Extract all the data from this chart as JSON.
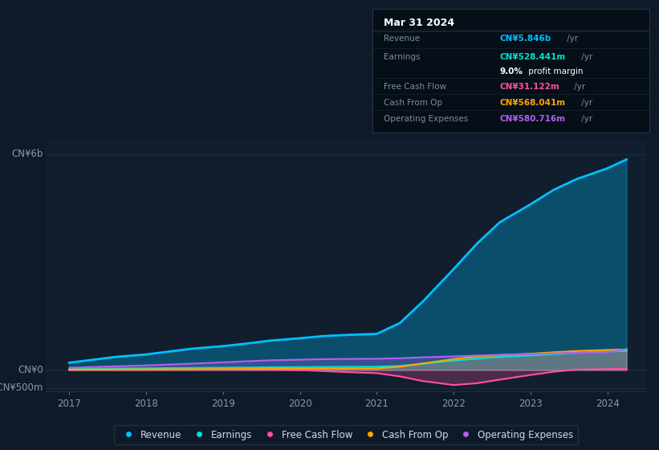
{
  "background_color": "#0e1a27",
  "chart_bg_color": "#111e2d",
  "tooltip_bg": "#060e18",
  "title": "Mar 31 2024",
  "tooltip": {
    "Revenue": {
      "label": "CN¥5.846b",
      "suffix": " /yr"
    },
    "Earnings": {
      "label": "CN¥528.441m",
      "suffix": " /yr"
    },
    "profit_margin_bold": "9.0%",
    "profit_margin_text": " profit margin",
    "Free Cash Flow": {
      "label": "CN¥31.122m",
      "suffix": " /yr"
    },
    "Cash From Op": {
      "label": "CN¥568.041m",
      "suffix": " /yr"
    },
    "Operating Expenses": {
      "label": "CN¥580.716m",
      "suffix": " /yr"
    }
  },
  "ylabel_top": "CN¥6b",
  "ylabel_zero": "CN¥0",
  "ylabel_neg": "-CN¥500m",
  "years": [
    2017.0,
    2017.3,
    2017.6,
    2018.0,
    2018.3,
    2018.6,
    2019.0,
    2019.3,
    2019.6,
    2020.0,
    2020.3,
    2020.6,
    2021.0,
    2021.3,
    2021.6,
    2022.0,
    2022.3,
    2022.6,
    2023.0,
    2023.3,
    2023.6,
    2024.0,
    2024.25
  ],
  "revenue": [
    200,
    280,
    360,
    430,
    510,
    590,
    660,
    730,
    810,
    880,
    940,
    970,
    1000,
    1300,
    1900,
    2800,
    3500,
    4100,
    4600,
    5000,
    5300,
    5600,
    5846
  ],
  "earnings": [
    25,
    32,
    38,
    44,
    50,
    56,
    62,
    67,
    73,
    78,
    82,
    85,
    88,
    110,
    170,
    260,
    310,
    360,
    400,
    440,
    475,
    510,
    528
  ],
  "free_cash_flow": [
    -5,
    -3,
    -1,
    2,
    3,
    4,
    4,
    3,
    2,
    -5,
    -30,
    -60,
    -90,
    -180,
    -310,
    -420,
    -370,
    -270,
    -140,
    -50,
    10,
    25,
    31
  ],
  "cash_from_op": [
    8,
    10,
    12,
    15,
    18,
    21,
    25,
    28,
    31,
    34,
    36,
    38,
    40,
    90,
    180,
    300,
    370,
    410,
    450,
    490,
    525,
    555,
    568
  ],
  "operating_expenses": [
    60,
    80,
    100,
    125,
    150,
    175,
    210,
    240,
    265,
    285,
    298,
    305,
    310,
    325,
    350,
    375,
    400,
    420,
    440,
    460,
    475,
    492,
    581
  ],
  "revenue_color": "#00bfff",
  "earnings_color": "#00e5cc",
  "free_cash_flow_color": "#ff4fa0",
  "cash_from_op_color": "#ffa500",
  "operating_expenses_color": "#b060f0",
  "grid_color": "#1e3048",
  "label_color": "#8899aa",
  "x_ticks": [
    2017,
    2018,
    2019,
    2020,
    2021,
    2022,
    2023,
    2024
  ],
  "ylim_low": -600,
  "ylim_high": 6400,
  "xlim_low": 2016.7,
  "xlim_high": 2024.5
}
